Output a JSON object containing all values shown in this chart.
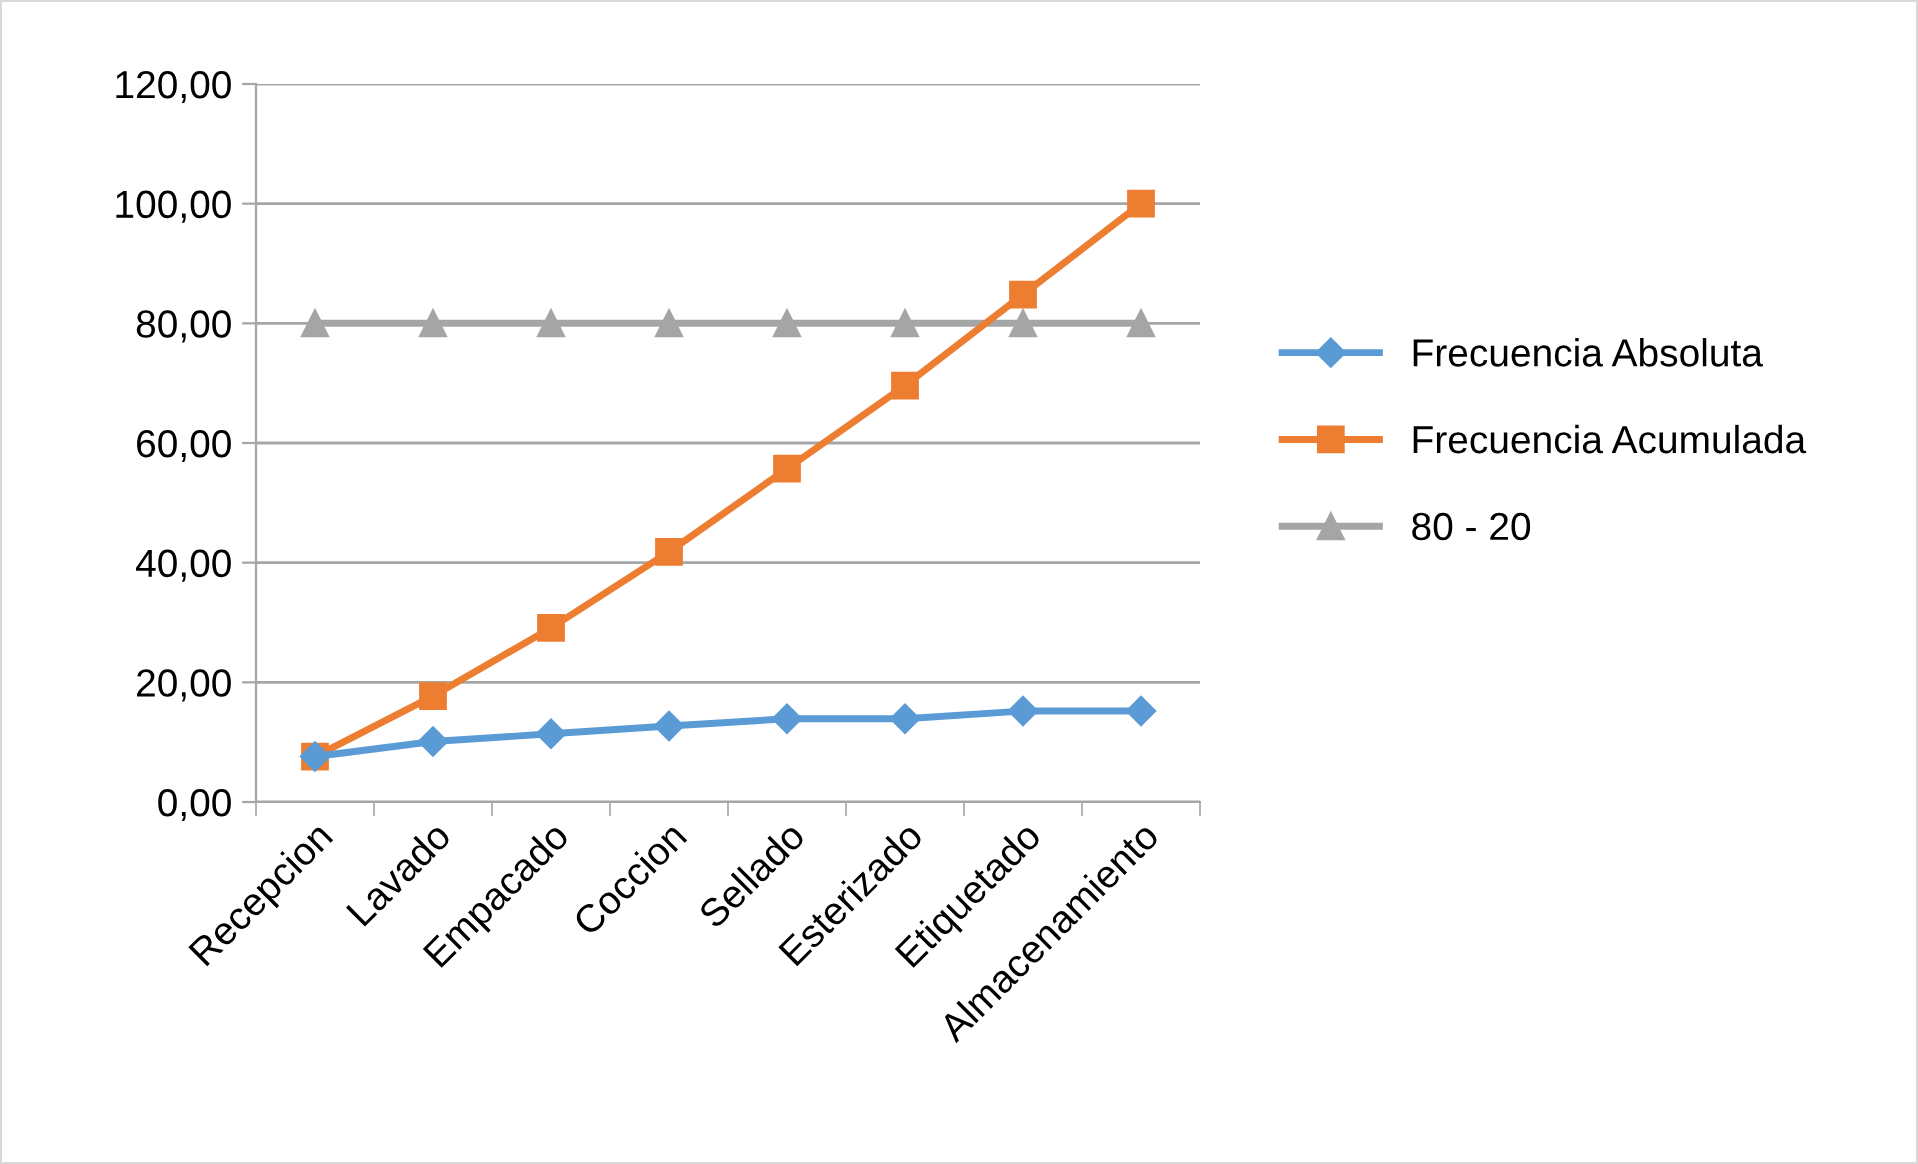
{
  "chart_data": {
    "type": "line",
    "categories": [
      "Recepcion",
      "Lavado",
      "Empacado",
      "Coccion",
      "Sellado",
      "Esterizado",
      "Etiquetado",
      "Almacenamiento"
    ],
    "series": [
      {
        "name": "Frecuencia Absoluta",
        "color": "#5b9bd5",
        "marker": "diamond",
        "values": [
          7.6,
          10.1,
          11.4,
          12.7,
          13.9,
          13.9,
          15.2,
          15.2
        ]
      },
      {
        "name": "Frecuencia Acumulada",
        "color": "#ed7d31",
        "marker": "square",
        "values": [
          7.6,
          17.7,
          29.1,
          41.8,
          55.7,
          69.6,
          84.8,
          100
        ]
      },
      {
        "name": "80 - 20",
        "color": "#a5a5a5",
        "marker": "triangle",
        "values": [
          80,
          80,
          80,
          80,
          80,
          80,
          80,
          80
        ]
      }
    ],
    "ylim": [
      0,
      120
    ],
    "yticks": [
      {
        "value": 0,
        "label": "0,00"
      },
      {
        "value": 20,
        "label": "20,00"
      },
      {
        "value": 40,
        "label": "40,00"
      },
      {
        "value": 60,
        "label": "60,00"
      },
      {
        "value": 80,
        "label": "80,00"
      },
      {
        "value": 100,
        "label": "100,00"
      },
      {
        "value": 120,
        "label": "120,00"
      }
    ],
    "grid": "y",
    "legend": "right"
  }
}
